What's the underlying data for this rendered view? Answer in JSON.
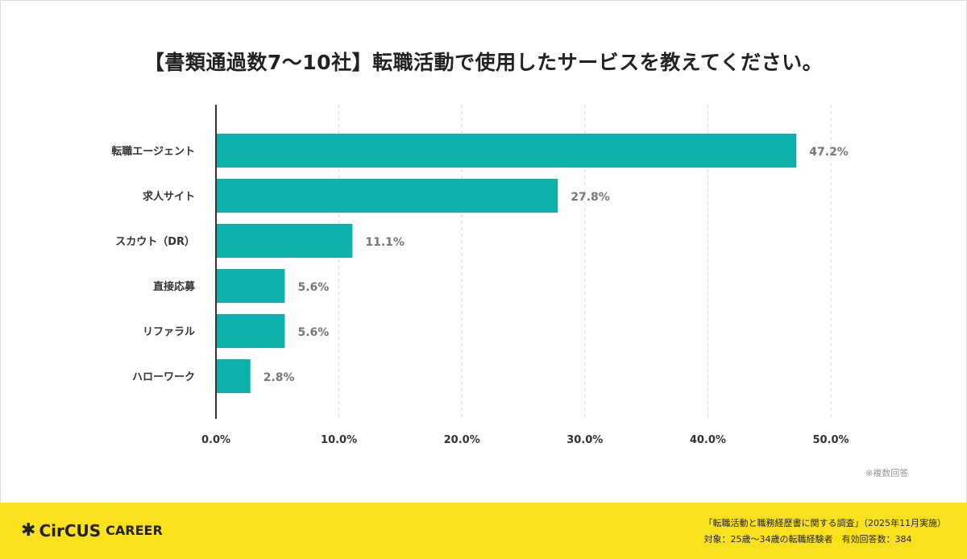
{
  "chart_data": {
    "type": "bar",
    "orientation": "horizontal",
    "title": "【書類通過数7〜10社】転職活動で使用したサービスを教えてください。",
    "categories": [
      "転職エージェント",
      "求人サイト",
      "スカウト（DR）",
      "直接応募",
      "リファラル",
      "ハローワーク"
    ],
    "values": [
      47.2,
      27.8,
      11.1,
      5.6,
      5.6,
      2.8
    ],
    "value_labels": [
      "47.2%",
      "27.8%",
      "11.1%",
      "5.6%",
      "5.6%",
      "2.8%"
    ],
    "xlim": [
      0,
      50
    ],
    "xticks": [
      0,
      10,
      20,
      30,
      40,
      50
    ],
    "xtick_labels": [
      "0.0%",
      "10.0%",
      "20.0%",
      "30.0%",
      "40.0%",
      "50.0%"
    ],
    "xlabel": "",
    "ylabel": "",
    "grid": true,
    "bar_color": "#0db1aa"
  },
  "note": "※複数回答",
  "footer": {
    "logo_main": "CirCUS",
    "logo_sub": "CAREER",
    "survey": "「転職活動と職務経歴書に関する調査」（2025年11月実施）",
    "target": "対象：25歳〜34歳の転職経験者　有効回答数：384",
    "color": "#f9e11e"
  }
}
